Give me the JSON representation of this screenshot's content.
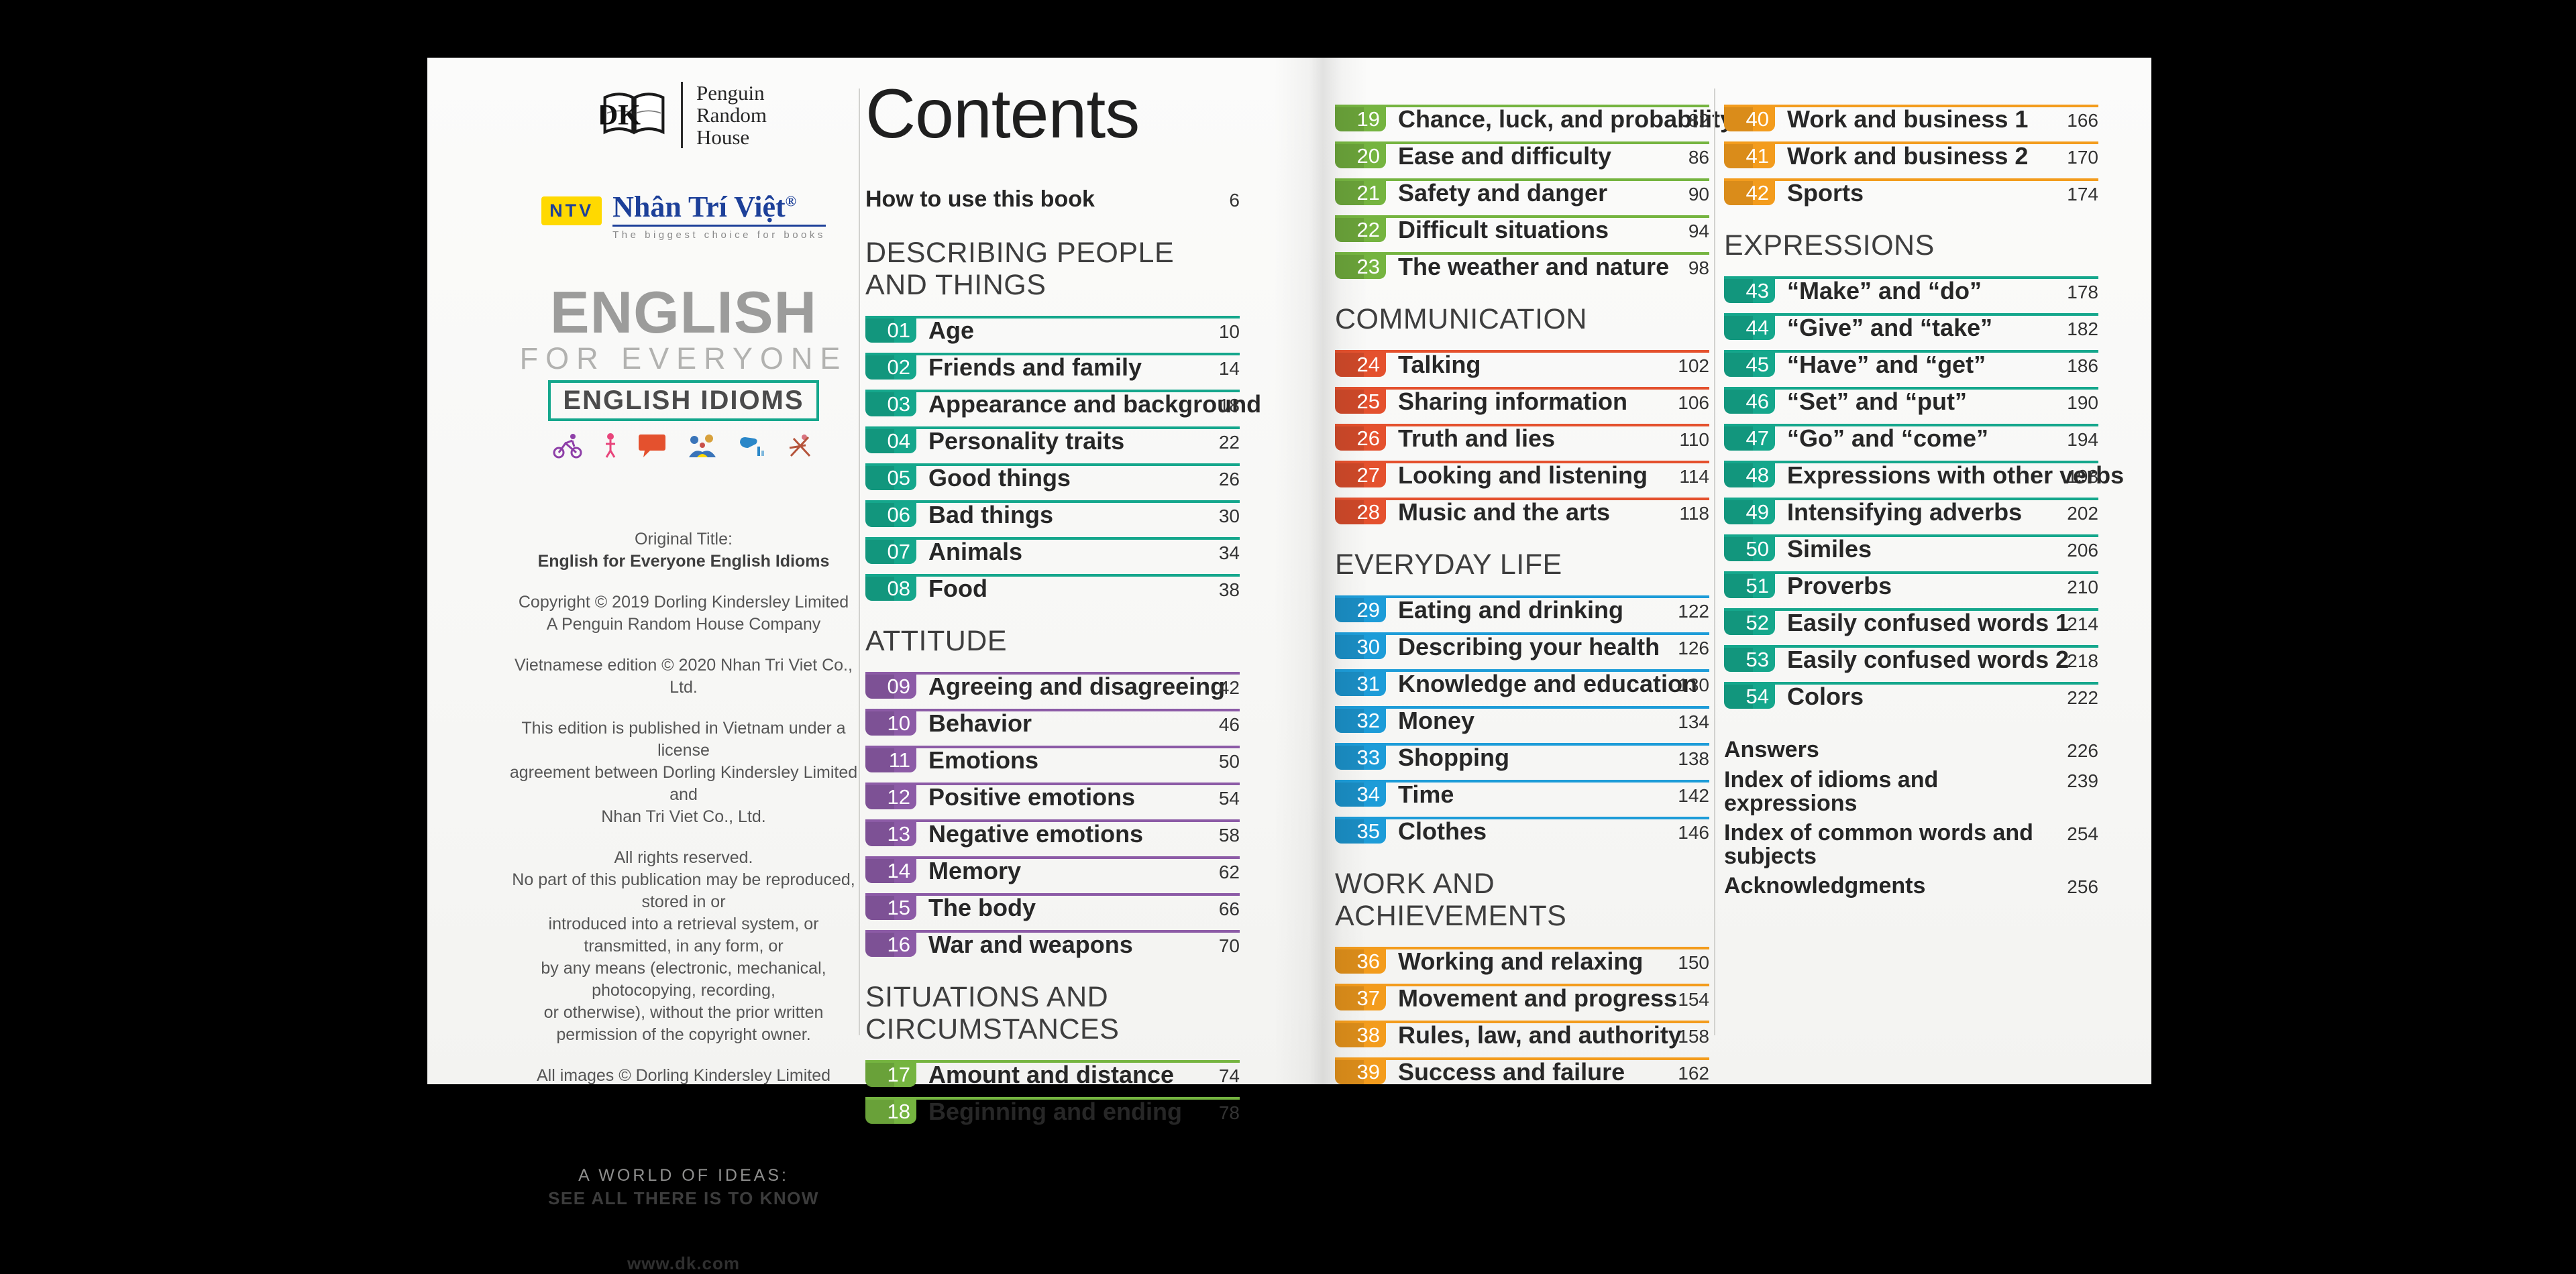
{
  "left_page": {
    "publisher": {
      "dk_letters": "DK",
      "name_lines": [
        "Penguin",
        "Random",
        "House"
      ]
    },
    "ntv": {
      "badge": "NTV",
      "name": "Nhân Trí Việt",
      "reg_mark": "®",
      "tagline": "The biggest choice for books"
    },
    "brand": {
      "line1": "ENGLISH",
      "line2": "FOR EVERYONE",
      "line3": "ENGLISH IDIOMS",
      "accent_color": "#15a78c",
      "icons": [
        "cyclist-icon",
        "person-icon",
        "speech-bubble-icon",
        "family-icon",
        "hand-chart-icon",
        "deckchair-icon"
      ]
    },
    "imprint": [
      {
        "lines": [
          {
            "text": "Original Title:"
          },
          {
            "text": "English for Everyone English Idioms",
            "bold": true
          }
        ]
      },
      {
        "lines": [
          {
            "text": "Copyright © 2019 Dorling Kindersley Limited"
          },
          {
            "text": "A Penguin Random House Company"
          }
        ]
      },
      {
        "lines": [
          {
            "text": "Vietnamese edition © 2020 Nhan Tri Viet Co., Ltd."
          }
        ]
      },
      {
        "lines": [
          {
            "text": "This edition is published in Vietnam under a license"
          },
          {
            "text": "agreement between Dorling Kindersley Limited and"
          },
          {
            "text": "Nhan Tri Viet Co., Ltd."
          }
        ]
      },
      {
        "lines": [
          {
            "text": "All rights reserved."
          },
          {
            "text": "No part of this publication may be reproduced, stored in or"
          },
          {
            "text": "introduced into a retrieval system, or transmitted, in any form, or"
          },
          {
            "text": "by any means (electronic, mechanical, photocopying, recording,"
          },
          {
            "text": "or otherwise), without the prior written"
          },
          {
            "text": "permission of the copyright owner."
          }
        ]
      },
      {
        "lines": [
          {
            "text": "All images © Dorling Kindersley Limited"
          }
        ]
      }
    ],
    "slogan_line1": "A WORLD OF IDEAS:",
    "slogan_line2": "SEE ALL THERE IS TO KNOW",
    "website": "www.dk.com"
  },
  "contents": {
    "title": "Contents",
    "how_to": {
      "label": "How to use this book",
      "page": "6"
    },
    "sections": [
      {
        "name": "DESCRIBING PEOPLE AND THINGS",
        "color": "#15a78c",
        "items": [
          {
            "num": "01",
            "label": "Age",
            "page": "10"
          },
          {
            "num": "02",
            "label": "Friends and family",
            "page": "14"
          },
          {
            "num": "03",
            "label": "Appearance and background",
            "page": "18"
          },
          {
            "num": "04",
            "label": "Personality traits",
            "page": "22"
          },
          {
            "num": "05",
            "label": "Good things",
            "page": "26"
          },
          {
            "num": "06",
            "label": "Bad things",
            "page": "30"
          },
          {
            "num": "07",
            "label": "Animals",
            "page": "34"
          },
          {
            "num": "08",
            "label": "Food",
            "page": "38"
          }
        ]
      },
      {
        "name": "ATTITUDE",
        "color": "#8c5ba6",
        "items": [
          {
            "num": "09",
            "label": "Agreeing and disagreeing",
            "page": "42"
          },
          {
            "num": "10",
            "label": "Behavior",
            "page": "46"
          },
          {
            "num": "11",
            "label": "Emotions",
            "page": "50"
          },
          {
            "num": "12",
            "label": "Positive emotions",
            "page": "54"
          },
          {
            "num": "13",
            "label": "Negative emotions",
            "page": "58"
          },
          {
            "num": "14",
            "label": "Memory",
            "page": "62"
          },
          {
            "num": "15",
            "label": "The body",
            "page": "66"
          },
          {
            "num": "16",
            "label": "War and weapons",
            "page": "70"
          }
        ]
      },
      {
        "name": "SITUATIONS AND CIRCUMSTANCES",
        "color": "#75b440",
        "items": [
          {
            "num": "17",
            "label": "Amount and distance",
            "page": "74"
          },
          {
            "num": "18",
            "label": "Beginning and ending",
            "page": "78"
          },
          {
            "num": "19",
            "label": "Chance, luck, and probability",
            "page": "82"
          },
          {
            "num": "20",
            "label": "Ease and difficulty",
            "page": "86"
          },
          {
            "num": "21",
            "label": "Safety and danger",
            "page": "90"
          },
          {
            "num": "22",
            "label": "Difficult situations",
            "page": "94"
          },
          {
            "num": "23",
            "label": "The weather and nature",
            "page": "98"
          }
        ]
      },
      {
        "name": "COMMUNICATION",
        "color": "#e4512e",
        "items": [
          {
            "num": "24",
            "label": "Talking",
            "page": "102"
          },
          {
            "num": "25",
            "label": "Sharing information",
            "page": "106"
          },
          {
            "num": "26",
            "label": "Truth and lies",
            "page": "110"
          },
          {
            "num": "27",
            "label": "Looking and listening",
            "page": "114"
          },
          {
            "num": "28",
            "label": "Music and the arts",
            "page": "118"
          }
        ]
      },
      {
        "name": "EVERYDAY LIFE",
        "color": "#1d9cd8",
        "items": [
          {
            "num": "29",
            "label": "Eating and drinking",
            "page": "122"
          },
          {
            "num": "30",
            "label": "Describing your health",
            "page": "126"
          },
          {
            "num": "31",
            "label": "Knowledge and education",
            "page": "130"
          },
          {
            "num": "32",
            "label": "Money",
            "page": "134"
          },
          {
            "num": "33",
            "label": "Shopping",
            "page": "138"
          },
          {
            "num": "34",
            "label": "Time",
            "page": "142"
          },
          {
            "num": "35",
            "label": "Clothes",
            "page": "146"
          }
        ]
      },
      {
        "name": "WORK AND ACHIEVEMENTS",
        "color": "#f39c1d",
        "items": [
          {
            "num": "36",
            "label": "Working and relaxing",
            "page": "150"
          },
          {
            "num": "37",
            "label": "Movement and progress",
            "page": "154"
          },
          {
            "num": "38",
            "label": "Rules, law, and authority",
            "page": "158"
          },
          {
            "num": "39",
            "label": "Success and failure",
            "page": "162"
          },
          {
            "num": "40",
            "label": "Work and business 1",
            "page": "166"
          },
          {
            "num": "41",
            "label": "Work and business 2",
            "page": "170"
          },
          {
            "num": "42",
            "label": "Sports",
            "page": "174"
          }
        ]
      },
      {
        "name": "EXPRESSIONS",
        "color": "#15a78c",
        "items": [
          {
            "num": "43",
            "label": "“Make” and “do”",
            "page": "178"
          },
          {
            "num": "44",
            "label": "“Give” and “take”",
            "page": "182"
          },
          {
            "num": "45",
            "label": "“Have” and “get”",
            "page": "186"
          },
          {
            "num": "46",
            "label": "“Set” and “put”",
            "page": "190"
          },
          {
            "num": "47",
            "label": "“Go” and “come”",
            "page": "194"
          },
          {
            "num": "48",
            "label": "Expressions with other verbs",
            "page": "198"
          },
          {
            "num": "49",
            "label": "Intensifying adverbs",
            "page": "202"
          },
          {
            "num": "50",
            "label": "Similes",
            "page": "206"
          },
          {
            "num": "51",
            "label": "Proverbs",
            "page": "210"
          },
          {
            "num": "52",
            "label": "Easily confused words 1",
            "page": "214"
          },
          {
            "num": "53",
            "label": "Easily confused words 2",
            "page": "218"
          },
          {
            "num": "54",
            "label": "Colors",
            "page": "222"
          }
        ]
      }
    ],
    "back_matter": [
      {
        "label": "Answers",
        "page": "226"
      },
      {
        "label": "Index of idioms and expressions",
        "page": "239"
      },
      {
        "label": "Index of common words and subjects",
        "page": "254"
      },
      {
        "label": "Acknowledgments",
        "page": "256"
      }
    ],
    "columns": [
      {
        "blocks": [
          {
            "type": "contents-title"
          },
          {
            "type": "how"
          },
          {
            "type": "header",
            "section": 0
          },
          {
            "type": "items",
            "section": 0,
            "from": 0,
            "to": 7
          },
          {
            "type": "header",
            "section": 1
          },
          {
            "type": "items",
            "section": 1,
            "from": 0,
            "to": 7
          },
          {
            "type": "header",
            "section": 2
          },
          {
            "type": "items",
            "section": 2,
            "from": 0,
            "to": 1
          }
        ]
      },
      {
        "blocks": [
          {
            "type": "items",
            "section": 2,
            "from": 2,
            "to": 6
          },
          {
            "type": "header",
            "section": 3
          },
          {
            "type": "items",
            "section": 3,
            "from": 0,
            "to": 4
          },
          {
            "type": "header",
            "section": 4
          },
          {
            "type": "items",
            "section": 4,
            "from": 0,
            "to": 6
          },
          {
            "type": "header",
            "section": 5
          },
          {
            "type": "items",
            "section": 5,
            "from": 0,
            "to": 3
          }
        ]
      },
      {
        "blocks": [
          {
            "type": "items",
            "section": 5,
            "from": 4,
            "to": 6
          },
          {
            "type": "header",
            "section": 6
          },
          {
            "type": "items",
            "section": 6,
            "from": 0,
            "to": 11
          },
          {
            "type": "back"
          }
        ]
      }
    ]
  }
}
